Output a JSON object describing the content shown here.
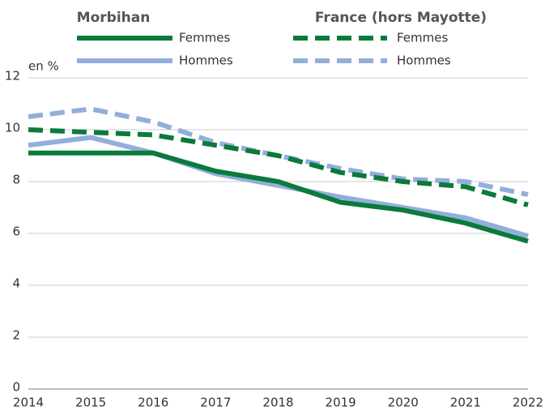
{
  "chart_data": {
    "type": "line",
    "ylabel": "en %",
    "x": [
      2014,
      2015,
      2016,
      2017,
      2018,
      2019,
      2020,
      2021,
      2022
    ],
    "xlim": [
      2014,
      2022
    ],
    "xticks": [
      2014,
      2015,
      2016,
      2017,
      2018,
      2019,
      2020,
      2021,
      2022
    ],
    "ylim": [
      0,
      12
    ],
    "yticks": [
      0,
      2,
      4,
      6,
      8,
      10,
      12
    ],
    "grid": true,
    "groups": [
      {
        "title": "Morbihan",
        "dashed": false,
        "series": [
          {
            "name": "Femmes",
            "color": "#0b7a3b",
            "values": [
              9.1,
              9.1,
              9.1,
              8.4,
              8.0,
              7.2,
              6.9,
              6.4,
              5.7
            ]
          },
          {
            "name": "Hommes",
            "color": "#92afdb",
            "values": [
              9.4,
              9.7,
              9.1,
              8.3,
              7.85,
              7.4,
              7.0,
              6.6,
              5.9
            ]
          }
        ]
      },
      {
        "title": "France (hors Mayotte)",
        "dashed": true,
        "series": [
          {
            "name": "Femmes",
            "color": "#0b7a3b",
            "values": [
              10.0,
              9.9,
              9.8,
              9.4,
              9.0,
              8.35,
              8.0,
              7.8,
              7.1
            ]
          },
          {
            "name": "Hommes",
            "color": "#92afdb",
            "values": [
              10.5,
              10.8,
              10.3,
              9.5,
              9.0,
              8.5,
              8.1,
              8.0,
              7.5
            ]
          }
        ]
      }
    ]
  }
}
